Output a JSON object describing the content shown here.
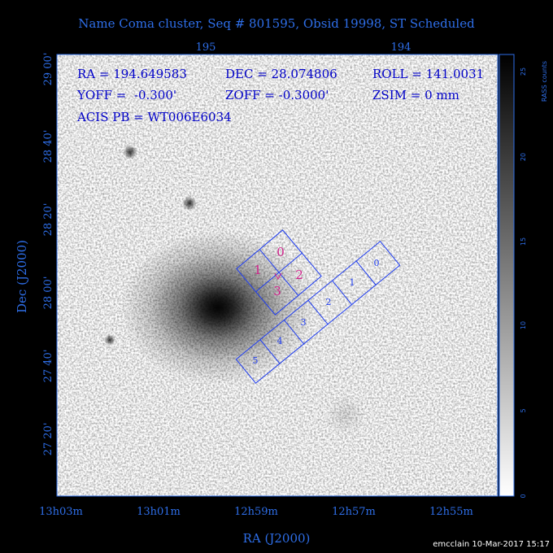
{
  "title": "Name Coma cluster, Seq # 801595, Obsid 19998, ST Scheduled",
  "top_axis": [
    "195",
    "194"
  ],
  "info": {
    "ra": "RA = 194.649583",
    "dec": "DEC = 28.074806",
    "roll": "ROLL = 141.0031",
    "yoff": "YOFF =  -0.300'",
    "zoff": "ZOFF = -0.3000'",
    "zsim": "ZSIM = 0 mm",
    "acis": "ACIS PB = WT006E6034"
  },
  "left_axis": [
    "29 00'",
    "28 40'",
    "28 20'",
    "28 00'",
    "27 40'",
    "27 20'"
  ],
  "bottom_axis": [
    "13h03m",
    "13h01m",
    "12h59m",
    "12h57m",
    "12h55m"
  ],
  "x_label": "RA (J2000)",
  "y_label": "Dec (J2000)",
  "colorbar": {
    "label": "RASS counts",
    "ticks": [
      "0",
      "5",
      "10",
      "15",
      "20",
      "25"
    ]
  },
  "acis_i": [
    "0",
    "1",
    "2",
    "3"
  ],
  "acis_s": [
    "0",
    "1",
    "2",
    "3",
    "4",
    "5"
  ],
  "footer": "emcclain 10-Mar-2017 15:17"
}
